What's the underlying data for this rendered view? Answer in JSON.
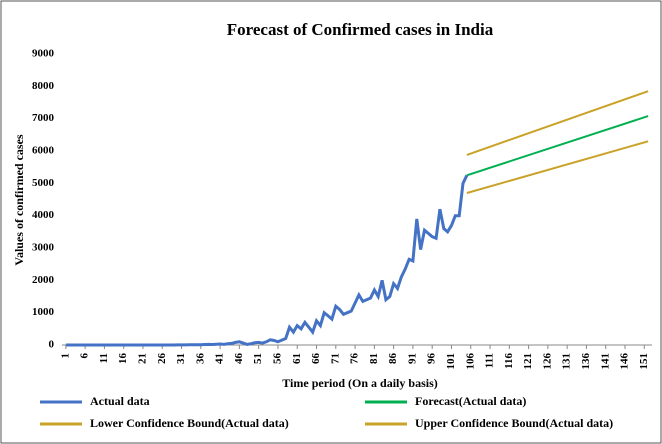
{
  "chart_data": {
    "type": "line",
    "title": "Forecast of Confirmed cases in India",
    "xlabel": "Time period  (On a daily basis)",
    "ylabel": "Values of confirmed cases",
    "xlim": [
      0,
      153
    ],
    "ylim": [
      0,
      9000
    ],
    "xticks": [
      1,
      6,
      11,
      16,
      21,
      26,
      31,
      36,
      41,
      46,
      51,
      56,
      61,
      66,
      71,
      76,
      81,
      86,
      91,
      96,
      101,
      106,
      111,
      116,
      121,
      126,
      131,
      136,
      141,
      146,
      151
    ],
    "yticks": [
      0,
      1000,
      2000,
      3000,
      4000,
      5000,
      6000,
      7000,
      8000,
      9000
    ],
    "grid": false,
    "series": [
      {
        "name": "Actual data",
        "color": "#4472c4",
        "x": [
          1,
          2,
          3,
          4,
          5,
          6,
          7,
          8,
          9,
          10,
          11,
          12,
          13,
          14,
          15,
          16,
          17,
          18,
          19,
          20,
          21,
          22,
          23,
          24,
          25,
          26,
          27,
          28,
          29,
          30,
          31,
          32,
          33,
          34,
          35,
          36,
          37,
          38,
          39,
          40,
          41,
          42,
          43,
          44,
          45,
          46,
          47,
          48,
          49,
          50,
          51,
          52,
          53,
          54,
          55,
          56,
          57,
          58,
          59,
          60,
          61,
          62,
          63,
          64,
          65,
          66,
          67,
          68,
          69,
          70,
          71,
          72,
          73,
          74,
          75,
          76,
          77,
          78,
          79,
          80,
          81,
          82,
          83,
          84,
          85,
          86,
          87,
          88,
          89,
          90,
          91,
          92,
          93,
          94,
          95,
          96,
          97,
          98,
          99,
          100,
          101,
          102,
          103,
          104,
          105
        ],
        "values": [
          0,
          0,
          0,
          0,
          0,
          0,
          0,
          0,
          0,
          0,
          0,
          0,
          0,
          0,
          0,
          0,
          0,
          0,
          0,
          0,
          0,
          0,
          0,
          0,
          0,
          0,
          0,
          0,
          0,
          2,
          3,
          3,
          5,
          6,
          10,
          10,
          15,
          20,
          15,
          25,
          30,
          20,
          40,
          50,
          80,
          100,
          60,
          20,
          40,
          70,
          80,
          60,
          100,
          160,
          140,
          100,
          150,
          200,
          550,
          400,
          600,
          500,
          700,
          550,
          400,
          750,
          600,
          1000,
          900,
          800,
          1200,
          1100,
          950,
          1000,
          1050,
          1300,
          1550,
          1350,
          1400,
          1450,
          1700,
          1500,
          2000,
          1400,
          1500,
          1900,
          1750,
          2100,
          2350,
          2650,
          2600,
          3900,
          2950,
          3550,
          3450,
          3350,
          3300,
          4200,
          3600,
          3500,
          3700,
          4000,
          4000,
          5000,
          5250
        ]
      },
      {
        "name": "Forecast(Actual data)",
        "color": "#00b050",
        "x": [
          105,
          152
        ],
        "values": [
          5250,
          7080
        ]
      },
      {
        "name": "Lower Confidence Bound(Actual data)",
        "color": "#c9a227",
        "x": [
          105,
          152
        ],
        "values": [
          4700,
          6300
        ]
      },
      {
        "name": "Upper Confidence Bound(Actual data)",
        "color": "#c9a227",
        "x": [
          105,
          152
        ],
        "values": [
          5880,
          7850
        ]
      }
    ]
  }
}
